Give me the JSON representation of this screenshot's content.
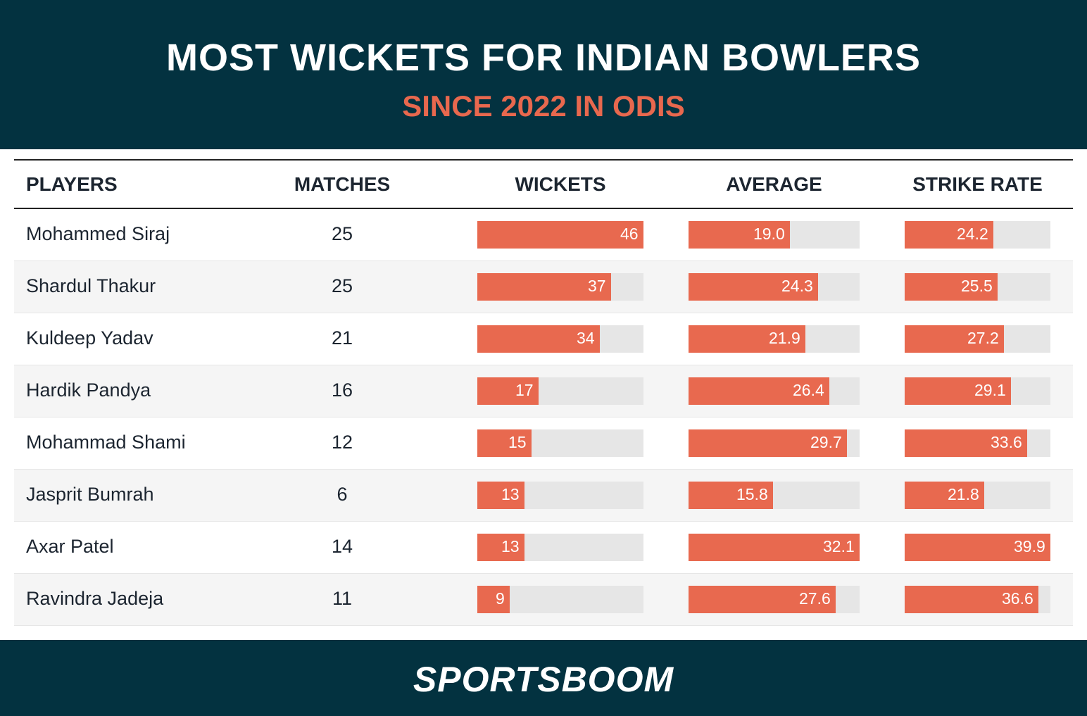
{
  "header": {
    "title": "MOST WICKETS FOR INDIAN BOWLERS",
    "subtitle": "SINCE 2022 IN ODIS"
  },
  "footer": {
    "logo_text": "SPORTSBOOM"
  },
  "colors": {
    "header_bg": "#033240",
    "accent": "#e8694f",
    "track": "#e6e6e6",
    "row_alt": "#f5f5f5"
  },
  "chart_data": {
    "type": "table",
    "columns": [
      "PLAYERS",
      "MATCHES",
      "WICKETS",
      "AVERAGE",
      "STRIKE RATE"
    ],
    "bar_columns": {
      "wickets_max": 46,
      "average_max": 32.1,
      "strike_rate_max": 39.9
    },
    "rows": [
      {
        "player": "Mohammed Siraj",
        "matches": "25",
        "wickets": 46,
        "average": 19.0,
        "strike_rate": 24.2,
        "wickets_label": "46",
        "average_label": "19.0",
        "strike_rate_label": "24.2"
      },
      {
        "player": "Shardul Thakur",
        "matches": "25",
        "wickets": 37,
        "average": 24.3,
        "strike_rate": 25.5,
        "wickets_label": "37",
        "average_label": "24.3",
        "strike_rate_label": "25.5"
      },
      {
        "player": "Kuldeep Yadav",
        "matches": "21",
        "wickets": 34,
        "average": 21.9,
        "strike_rate": 27.2,
        "wickets_label": "34",
        "average_label": "21.9",
        "strike_rate_label": "27.2"
      },
      {
        "player": "Hardik Pandya",
        "matches": "16",
        "wickets": 17,
        "average": 26.4,
        "strike_rate": 29.1,
        "wickets_label": "17",
        "average_label": "26.4",
        "strike_rate_label": "29.1"
      },
      {
        "player": "Mohammad Shami",
        "matches": "12",
        "wickets": 15,
        "average": 29.7,
        "strike_rate": 33.6,
        "wickets_label": "15",
        "average_label": "29.7",
        "strike_rate_label": "33.6"
      },
      {
        "player": "Jasprit Bumrah",
        "matches": "6",
        "wickets": 13,
        "average": 15.8,
        "strike_rate": 21.8,
        "wickets_label": "13",
        "average_label": "15.8",
        "strike_rate_label": "21.8"
      },
      {
        "player": "Axar Patel",
        "matches": "14",
        "wickets": 13,
        "average": 32.1,
        "strike_rate": 39.9,
        "wickets_label": "13",
        "average_label": "32.1",
        "strike_rate_label": "39.9"
      },
      {
        "player": "Ravindra Jadeja",
        "matches": "11",
        "wickets": 9,
        "average": 27.6,
        "strike_rate": 36.6,
        "wickets_label": "9",
        "average_label": "27.6",
        "strike_rate_label": "36.6"
      }
    ]
  }
}
